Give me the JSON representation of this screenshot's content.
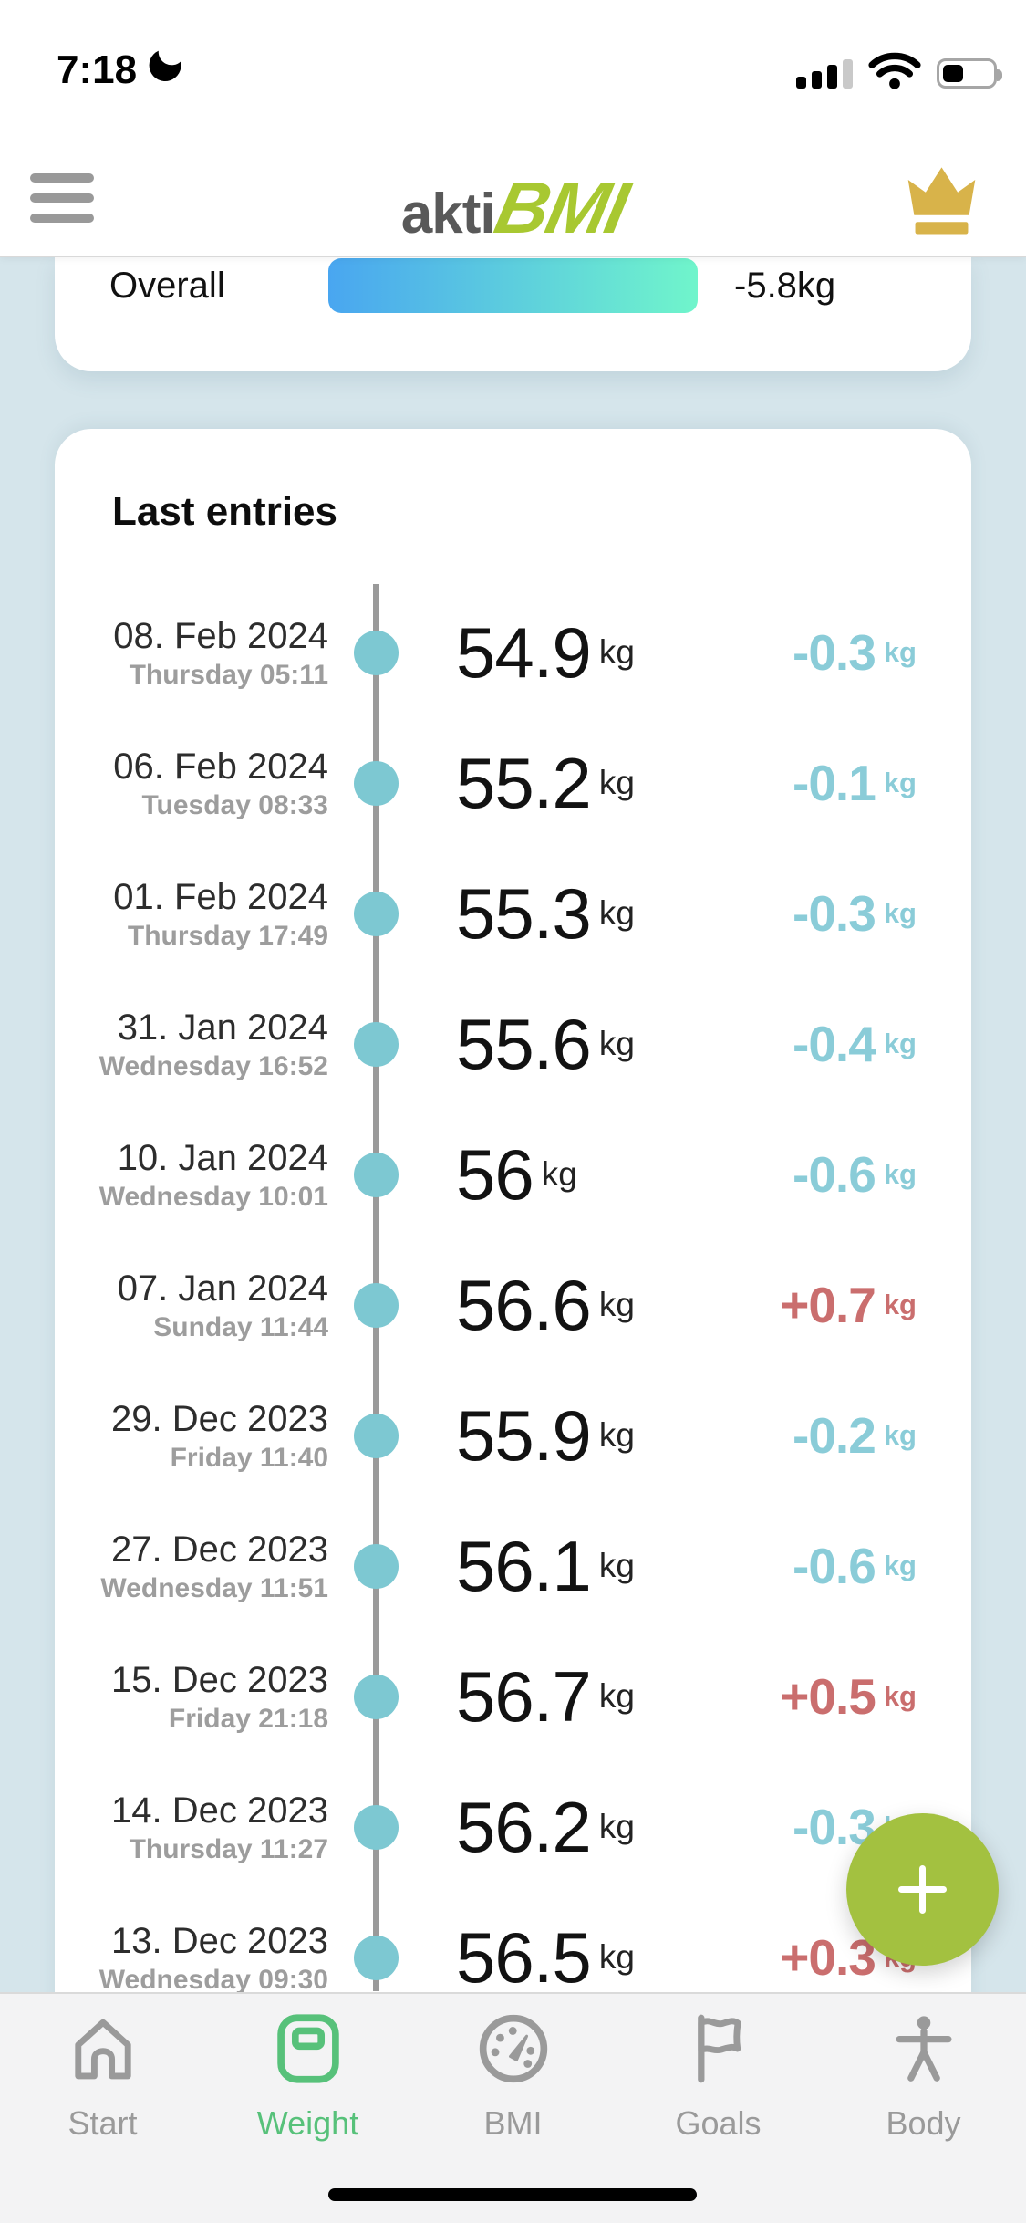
{
  "status_bar": {
    "time": "7:18"
  },
  "header": {
    "logo_akti": "akti",
    "logo_bmi": "BMI"
  },
  "overall": {
    "label": "Overall",
    "value": "-5.8kg"
  },
  "last_entries": {
    "title": "Last entries",
    "entries": [
      {
        "date": "08. Feb 2024",
        "day_time": "Thursday 05:11",
        "weight": "54.9",
        "unit": "kg",
        "delta": "-0.3",
        "delta_unit": "kg",
        "direction": "down"
      },
      {
        "date": "06. Feb 2024",
        "day_time": "Tuesday 08:33",
        "weight": "55.2",
        "unit": "kg",
        "delta": "-0.1",
        "delta_unit": "kg",
        "direction": "down"
      },
      {
        "date": "01. Feb 2024",
        "day_time": "Thursday 17:49",
        "weight": "55.3",
        "unit": "kg",
        "delta": "-0.3",
        "delta_unit": "kg",
        "direction": "down"
      },
      {
        "date": "31. Jan 2024",
        "day_time": "Wednesday 16:52",
        "weight": "55.6",
        "unit": "kg",
        "delta": "-0.4",
        "delta_unit": "kg",
        "direction": "down"
      },
      {
        "date": "10. Jan 2024",
        "day_time": "Wednesday 10:01",
        "weight": "56",
        "unit": "kg",
        "delta": "-0.6",
        "delta_unit": "kg",
        "direction": "down"
      },
      {
        "date": "07. Jan 2024",
        "day_time": "Sunday 11:44",
        "weight": "56.6",
        "unit": "kg",
        "delta": "+0.7",
        "delta_unit": "kg",
        "direction": "up"
      },
      {
        "date": "29. Dec 2023",
        "day_time": "Friday 11:40",
        "weight": "55.9",
        "unit": "kg",
        "delta": "-0.2",
        "delta_unit": "kg",
        "direction": "down"
      },
      {
        "date": "27. Dec 2023",
        "day_time": "Wednesday 11:51",
        "weight": "56.1",
        "unit": "kg",
        "delta": "-0.6",
        "delta_unit": "kg",
        "direction": "down"
      },
      {
        "date": "15. Dec 2023",
        "day_time": "Friday 21:18",
        "weight": "56.7",
        "unit": "kg",
        "delta": "+0.5",
        "delta_unit": "kg",
        "direction": "up"
      },
      {
        "date": "14. Dec 2023",
        "day_time": "Thursday 11:27",
        "weight": "56.2",
        "unit": "kg",
        "delta": "-0.3",
        "delta_unit": "kg",
        "direction": "down"
      },
      {
        "date": "13. Dec 2023",
        "day_time": "Wednesday 09:30",
        "weight": "56.5",
        "unit": "kg",
        "delta": "+0.3",
        "delta_unit": "kg",
        "direction": "up"
      }
    ]
  },
  "fab": {
    "icon": "plus-icon"
  },
  "tab_bar": {
    "tabs": [
      {
        "label": "Start",
        "icon": "home-icon",
        "active": false
      },
      {
        "label": "Weight",
        "icon": "scale-icon",
        "active": true
      },
      {
        "label": "BMI",
        "icon": "gauge-icon",
        "active": false
      },
      {
        "label": "Goals",
        "icon": "flag-icon",
        "active": false
      },
      {
        "label": "Body",
        "icon": "body-icon",
        "active": false
      }
    ]
  },
  "colors": {
    "bg_blue": "#d5e5eb",
    "logo_green": "#a8c831",
    "crown_gold": "#d8b34a",
    "dot_teal": "#7dc8d2",
    "delta_down": "#8accd8",
    "delta_up": "#ca6e6e",
    "fab_green": "#a3c140",
    "tab_active": "#57c17a",
    "progress_start": "#49a6f0",
    "progress_end": "#70f5cb",
    "line_gray": "#9a9a9a"
  }
}
